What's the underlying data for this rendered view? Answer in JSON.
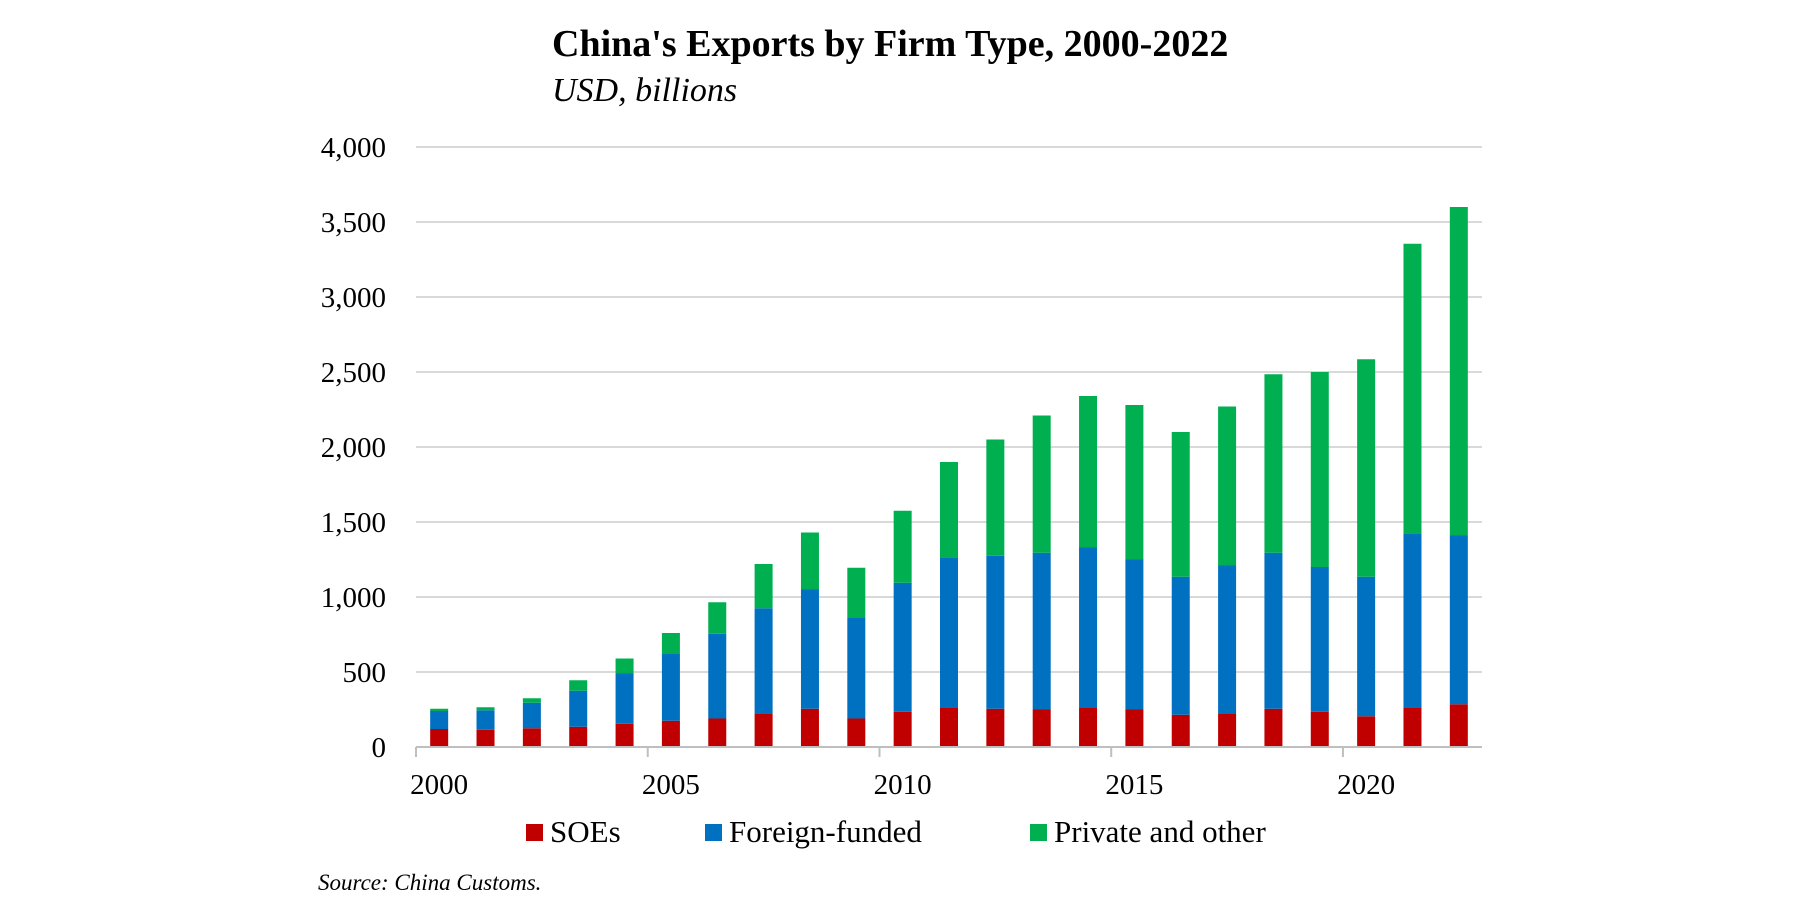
{
  "chart_data": {
    "type": "bar",
    "stacked": true,
    "title": "China's Exports by Firm Type, 2000-2022",
    "subtitle": "USD, billions",
    "xlabel": "",
    "ylabel": "",
    "ylim": [
      0,
      4000
    ],
    "y_ticks": [
      0,
      500,
      1000,
      1500,
      2000,
      2500,
      3000,
      3500,
      4000
    ],
    "y_tick_labels": [
      "0",
      "500",
      "1,000",
      "1,500",
      "2,000",
      "2,500",
      "3,000",
      "3,500",
      "4,000"
    ],
    "categories": [
      2000,
      2001,
      2002,
      2003,
      2004,
      2005,
      2006,
      2007,
      2008,
      2009,
      2010,
      2011,
      2012,
      2013,
      2014,
      2015,
      2016,
      2017,
      2018,
      2019,
      2020,
      2021,
      2022
    ],
    "x_tick_labels": [
      "2000",
      "2005",
      "2010",
      "2015",
      "2020"
    ],
    "x_tick_categories": [
      2000,
      2005,
      2010,
      2015,
      2020
    ],
    "grid": true,
    "legend_position": "bottom",
    "series": [
      {
        "name": "SOEs",
        "color": "#c00000",
        "values": [
          120,
          115,
          125,
          135,
          155,
          175,
          190,
          225,
          255,
          190,
          235,
          265,
          255,
          250,
          260,
          250,
          215,
          225,
          255,
          235,
          205,
          265,
          285
        ]
      },
      {
        "name": "Foreign-funded",
        "color": "#0070c0",
        "values": [
          120,
          130,
          170,
          240,
          335,
          445,
          565,
          700,
          795,
          670,
          860,
          1000,
          1020,
          1045,
          1070,
          1000,
          920,
          985,
          1040,
          965,
          930,
          1160,
          1125
        ]
      },
      {
        "name": "Private and other",
        "color": "#00b050",
        "values": [
          15,
          20,
          30,
          70,
          100,
          140,
          210,
          295,
          380,
          335,
          480,
          635,
          775,
          915,
          1010,
          1030,
          965,
          1060,
          1190,
          1300,
          1450,
          1930,
          2190
        ]
      }
    ],
    "source": "Source:  China Customs."
  }
}
